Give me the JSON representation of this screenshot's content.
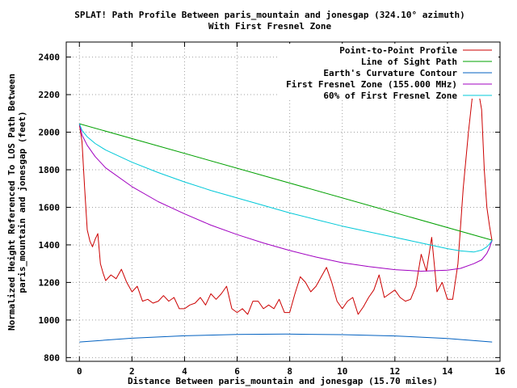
{
  "chart_data": {
    "type": "line",
    "title": "SPLAT! Path Profile Between paris_mountain and jonesgap (324.10° azimuth)",
    "subtitle": "With First Fresnel Zone",
    "xlabel": "Distance Between paris_mountain and jonesgap (15.70 miles)",
    "ylabel_line1": "Normalized Height Referenced To LOS Path Between",
    "ylabel_line2": "paris_mountain and jonesgap (feet)",
    "xlim": [
      -0.5,
      16
    ],
    "ylim": [
      780,
      2480
    ],
    "x_ticks": [
      0,
      2,
      4,
      6,
      8,
      10,
      12,
      14,
      16
    ],
    "y_ticks": [
      800,
      1000,
      1200,
      1400,
      1600,
      1800,
      2000,
      2200,
      2400
    ],
    "grid": true,
    "legend_position": "top-right",
    "series": [
      {
        "name": "Point-to-Point Profile",
        "color": "#cc0000",
        "x": [
          0,
          0.1,
          0.2,
          0.3,
          0.4,
          0.5,
          0.6,
          0.7,
          0.8,
          0.9,
          1.0,
          1.2,
          1.4,
          1.6,
          1.8,
          2.0,
          2.2,
          2.4,
          2.6,
          2.8,
          3.0,
          3.2,
          3.4,
          3.6,
          3.8,
          4.0,
          4.2,
          4.4,
          4.6,
          4.8,
          5.0,
          5.2,
          5.4,
          5.6,
          5.8,
          6.0,
          6.2,
          6.4,
          6.6,
          6.8,
          7.0,
          7.2,
          7.4,
          7.6,
          7.8,
          8.0,
          8.2,
          8.4,
          8.6,
          8.8,
          9.0,
          9.2,
          9.4,
          9.6,
          9.8,
          10.0,
          10.2,
          10.4,
          10.6,
          10.8,
          11.0,
          11.2,
          11.4,
          11.6,
          11.8,
          12.0,
          12.2,
          12.4,
          12.6,
          12.8,
          13.0,
          13.2,
          13.4,
          13.6,
          13.8,
          14.0,
          14.2,
          14.4,
          14.6,
          14.8,
          15.0,
          15.1,
          15.2,
          15.3,
          15.4,
          15.5,
          15.6,
          15.7
        ],
        "values": [
          2040,
          1950,
          1700,
          1480,
          1420,
          1390,
          1430,
          1460,
          1300,
          1250,
          1210,
          1240,
          1220,
          1270,
          1200,
          1150,
          1180,
          1100,
          1110,
          1090,
          1100,
          1130,
          1100,
          1120,
          1060,
          1060,
          1080,
          1090,
          1120,
          1080,
          1140,
          1110,
          1140,
          1180,
          1060,
          1040,
          1060,
          1030,
          1100,
          1100,
          1060,
          1080,
          1060,
          1110,
          1040,
          1040,
          1140,
          1230,
          1200,
          1150,
          1180,
          1230,
          1280,
          1200,
          1100,
          1060,
          1100,
          1120,
          1030,
          1070,
          1120,
          1160,
          1240,
          1120,
          1140,
          1160,
          1120,
          1100,
          1110,
          1180,
          1350,
          1260,
          1440,
          1150,
          1200,
          1110,
          1110,
          1300,
          1700,
          2000,
          2260,
          2400,
          2200,
          2120,
          1800,
          1600,
          1500,
          1420
        ]
      },
      {
        "name": "Line of Sight Path",
        "color": "#00a000",
        "x": [
          0,
          15.7
        ],
        "values": [
          2045,
          1425
        ]
      },
      {
        "name": "Earth's Curvature Contour",
        "color": "#0060c0",
        "x": [
          0,
          2,
          4,
          6,
          7.85,
          10,
          12,
          14,
          15.7
        ],
        "values": [
          883,
          903,
          916,
          923,
          925,
          922,
          915,
          902,
          883
        ]
      },
      {
        "name": "First Fresnel Zone (155.000 MHz)",
        "color": "#a000c0",
        "x": [
          0,
          0.1,
          0.3,
          0.6,
          1,
          2,
          3,
          4,
          5,
          6,
          7,
          8,
          9,
          10,
          11,
          12,
          13,
          14,
          14.5,
          15,
          15.3,
          15.5,
          15.6,
          15.7
        ],
        "values": [
          2045,
          1985,
          1930,
          1870,
          1810,
          1710,
          1630,
          1565,
          1505,
          1455,
          1410,
          1370,
          1335,
          1305,
          1285,
          1268,
          1260,
          1265,
          1275,
          1300,
          1320,
          1355,
          1385,
          1425
        ]
      },
      {
        "name": "60% of First Fresnel Zone",
        "color": "#00c8d8",
        "x": [
          0,
          0.1,
          0.3,
          0.6,
          1,
          2,
          3,
          4,
          5,
          6,
          7,
          8,
          9,
          10,
          11,
          12,
          13,
          14,
          14.5,
          15,
          15.3,
          15.5,
          15.6,
          15.7
        ],
        "values": [
          2045,
          2010,
          1975,
          1940,
          1905,
          1840,
          1785,
          1735,
          1690,
          1650,
          1610,
          1570,
          1535,
          1500,
          1470,
          1440,
          1410,
          1380,
          1368,
          1362,
          1372,
          1390,
          1405,
          1425
        ]
      }
    ]
  }
}
